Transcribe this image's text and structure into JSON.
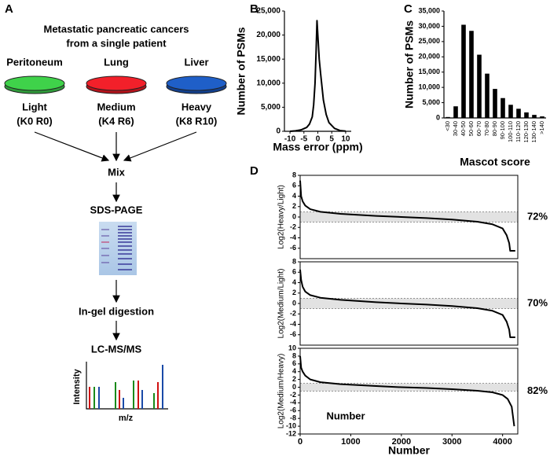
{
  "panel_labels": [
    "A",
    "B",
    "C",
    "D"
  ],
  "diagram": {
    "title": [
      "Metastatic pancreatic cancers",
      "from a single patient"
    ],
    "dishes": [
      {
        "tissue": "Peritoneum",
        "label": "Light",
        "isotopes": "(K0 R0)"
      },
      {
        "tissue": "Lung",
        "label": "Medium",
        "isotopes": "(K4 R6)"
      },
      {
        "tissue": "Liver",
        "label": "Heavy",
        "isotopes": "(K8 R10)"
      }
    ],
    "steps": [
      "Mix",
      "SDS-PAGE",
      "In-gel digestion",
      "LC-MS/MS"
    ],
    "spectrum": {
      "x_label": "m/z",
      "y_label": "Intensity"
    }
  },
  "chart_data": [
    {
      "type": "line",
      "x_label": "Mass error (ppm)",
      "y_label": "Number of PSMs",
      "color": "#000000",
      "x": [
        -10,
        -8,
        -6,
        -4,
        -3,
        -2,
        -1.5,
        -1,
        -0.6,
        -0.3,
        0,
        0.5,
        1,
        2,
        3,
        4,
        6,
        8,
        10
      ],
      "values": [
        0,
        100,
        300,
        800,
        1500,
        3000,
        5500,
        10000,
        17000,
        23000,
        20000,
        15000,
        12000,
        6500,
        3500,
        1800,
        600,
        150,
        50
      ],
      "xlim": [
        -12,
        12
      ],
      "xticks": [
        -10,
        -5,
        0,
        5,
        10
      ],
      "ylim": [
        0,
        25000
      ],
      "yticks": [
        0,
        {
          "value": 5000,
          "label": "5,000"
        },
        {
          "value": 10000,
          "label": "10,000"
        },
        {
          "value": 15000,
          "label": "15,000"
        },
        {
          "value": 20000,
          "label": "20,000"
        },
        {
          "value": 25000,
          "label": "25,000"
        }
      ]
    },
    {
      "type": "bar",
      "x_label": "Mascot score",
      "y_label": "Number of PSMs",
      "color": "#000000",
      "categories": [
        "<30",
        "30-40",
        "40-50",
        "50-60",
        "60-70",
        "70-80",
        "80-90",
        "90-100",
        "100-110",
        "110-120",
        "120-130",
        "130-140",
        ">140"
      ],
      "values": [
        300,
        3800,
        30500,
        28500,
        20700,
        14500,
        9500,
        6500,
        4300,
        3000,
        1800,
        1000,
        500
      ],
      "ylim": [
        0,
        35000
      ],
      "yticks": [
        0,
        {
          "value": 5000,
          "label": "5,000"
        },
        {
          "value": 10000,
          "label": "10,000"
        },
        {
          "value": 15000,
          "label": "15,000"
        },
        {
          "value": 20000,
          "label": "20,000"
        },
        {
          "value": 25000,
          "label": "25,000"
        },
        {
          "value": 30000,
          "label": "30,000"
        },
        {
          "value": 35000,
          "label": "35,000"
        }
      ]
    },
    {
      "type": "line",
      "y_label": "Log2(Heavy/Light)",
      "annotation": "72%",
      "color": "#000000",
      "band": [
        -1,
        1
      ],
      "x": [
        0,
        20,
        50,
        100,
        200,
        400,
        800,
        1500,
        2000,
        2500,
        3000,
        3500,
        3800,
        4000,
        4080,
        4130,
        4150,
        4250
      ],
      "values": [
        7,
        4,
        3,
        2.2,
        1.5,
        1.0,
        0.6,
        0.2,
        0,
        -0.2,
        -0.5,
        -0.9,
        -1.4,
        -2.2,
        -3.5,
        -5,
        -6.5,
        -6.5
      ],
      "xlim": [
        0,
        4300
      ],
      "ylim": [
        -8,
        8
      ],
      "yticks": [
        -6,
        -4,
        -2,
        0,
        2,
        4,
        6,
        8
      ]
    },
    {
      "type": "line",
      "y_label": "Log2(Medium/Light)",
      "annotation": "70%",
      "color": "#000000",
      "band": [
        -1,
        1
      ],
      "x": [
        0,
        20,
        50,
        100,
        200,
        400,
        800,
        1500,
        2000,
        2500,
        3000,
        3500,
        3800,
        4000,
        4080,
        4130,
        4150,
        4250
      ],
      "values": [
        6.5,
        4.5,
        3.2,
        2.3,
        1.6,
        1.1,
        0.7,
        0.25,
        0,
        -0.2,
        -0.5,
        -0.9,
        -1.4,
        -2.2,
        -3.5,
        -5,
        -6.5,
        -6.5
      ],
      "xlim": [
        0,
        4300
      ],
      "ylim": [
        -8,
        8
      ],
      "yticks": [
        -6,
        -4,
        -2,
        0,
        2,
        4,
        6,
        8
      ]
    },
    {
      "type": "line",
      "x_label": "Number",
      "y_label": "Log2(Medium/Heavy)",
      "annotation": "82%",
      "inset_text": "Number",
      "color": "#000000",
      "band": [
        -1,
        1
      ],
      "x": [
        0,
        20,
        50,
        100,
        200,
        400,
        800,
        1500,
        2000,
        2500,
        3000,
        3500,
        3800,
        4000,
        4100,
        4180,
        4230
      ],
      "values": [
        8,
        5,
        4,
        3,
        2,
        1.3,
        0.8,
        0.3,
        0,
        -0.2,
        -0.5,
        -0.9,
        -1.3,
        -2,
        -3,
        -5,
        -10
      ],
      "xlim": [
        0,
        4300
      ],
      "xticks": [
        0,
        1000,
        2000,
        3000,
        4000
      ],
      "ylim": [
        -12,
        10
      ],
      "yticks": [
        -12,
        -10,
        -8,
        -6,
        -4,
        -2,
        0,
        2,
        4,
        6,
        8,
        10
      ]
    }
  ]
}
